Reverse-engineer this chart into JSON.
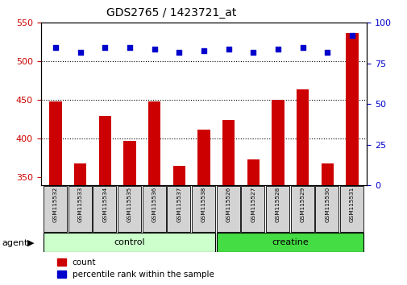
{
  "title": "GDS2765 / 1423721_at",
  "samples": [
    "GSM115532",
    "GSM115533",
    "GSM115534",
    "GSM115535",
    "GSM115536",
    "GSM115537",
    "GSM115538",
    "GSM115526",
    "GSM115527",
    "GSM115528",
    "GSM115529",
    "GSM115530",
    "GSM115531"
  ],
  "counts": [
    448,
    368,
    430,
    397,
    448,
    365,
    412,
    424,
    373,
    450,
    464,
    368,
    537
  ],
  "percentiles": [
    85,
    82,
    85,
    85,
    84,
    82,
    83,
    84,
    82,
    84,
    85,
    82,
    92
  ],
  "ylim_left": [
    340,
    550
  ],
  "ylim_right": [
    0,
    100
  ],
  "yticks_left": [
    350,
    400,
    450,
    500,
    550
  ],
  "yticks_right": [
    0,
    25,
    50,
    75,
    100
  ],
  "bar_color": "#CC0000",
  "dot_color": "#0000CC",
  "control_color": "#CCFFCC",
  "creatine_color": "#44DD44",
  "control_samples": 7,
  "creatine_samples": 6,
  "control_label": "control",
  "creatine_label": "creatine",
  "agent_label": "agent",
  "legend_count": "count",
  "legend_percentile": "percentile rank within the sample",
  "background_color": "#ffffff",
  "tick_label_color_left": "#CC0000",
  "tick_label_color_right": "#0000CC",
  "bar_width": 0.5,
  "grid_yticks": [
    400,
    450,
    500
  ]
}
